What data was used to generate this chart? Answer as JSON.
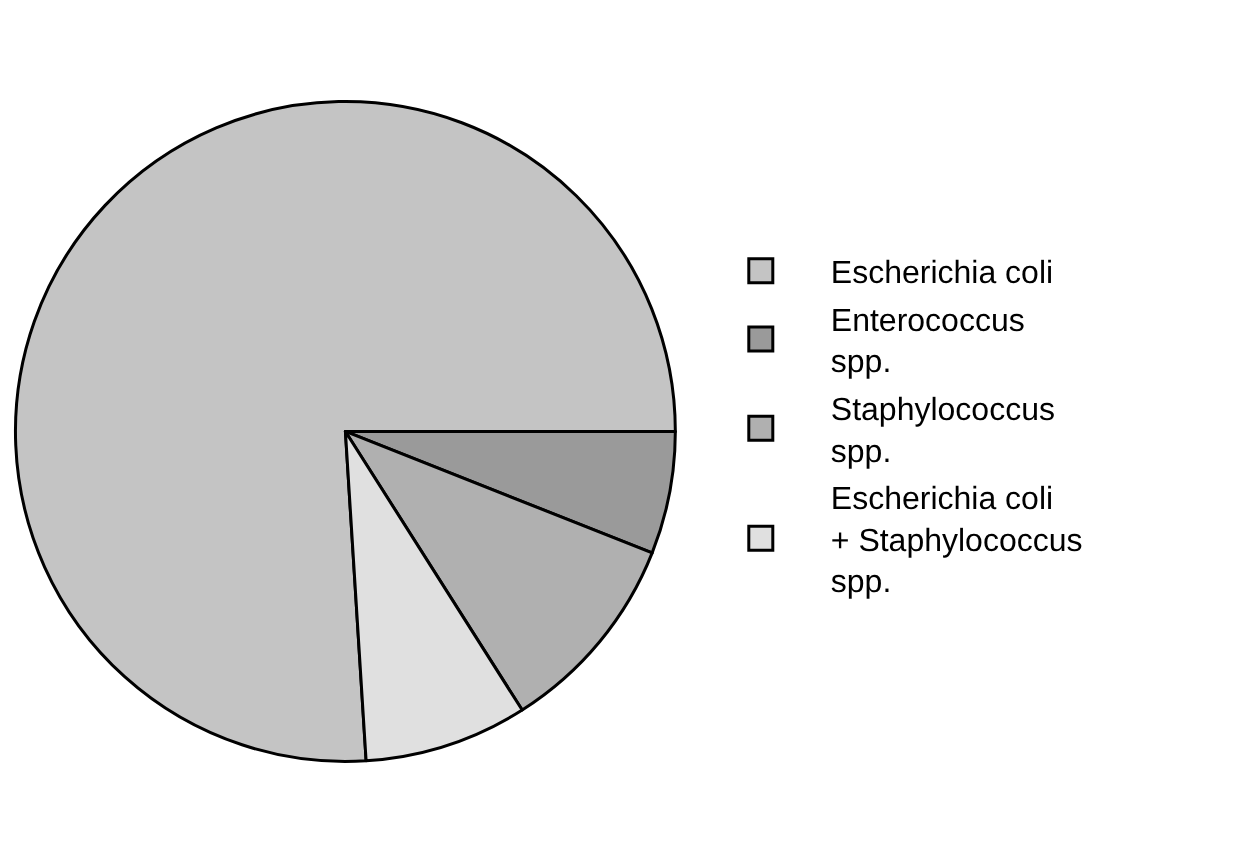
{
  "chart_data": {
    "type": "pie",
    "categories": [
      "Escherichia coli",
      "Enterococcus spp.",
      "Staphylococcus spp.",
      "Escherichia coli + Staphylococcus spp."
    ],
    "values": [
      76,
      6,
      10,
      8
    ],
    "colors": [
      "#c4c4c4",
      "#9a9a9a",
      "#b0b0b0",
      "#e0e0e0"
    ],
    "legend": "right"
  }
}
